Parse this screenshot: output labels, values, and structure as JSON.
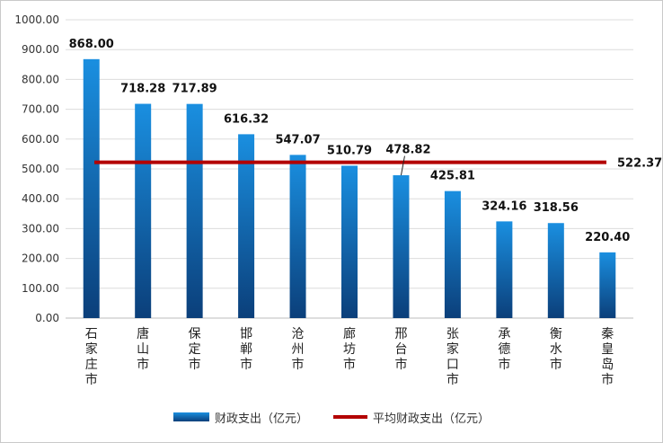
{
  "chart_data": {
    "type": "bar",
    "categories": [
      "石家庄市",
      "唐山市",
      "保定市",
      "邯郸市",
      "沧州市",
      "廊坊市",
      "邢台市",
      "张家口市",
      "承德市",
      "衡水市",
      "秦皇岛市"
    ],
    "series": [
      {
        "name": "财政支出（亿元）",
        "type": "bar",
        "values": [
          868.0,
          718.28,
          717.89,
          616.32,
          547.07,
          510.79,
          478.82,
          425.81,
          324.16,
          318.56,
          220.4
        ],
        "labels": [
          "868.00",
          "718.28",
          "717.89",
          "616.32",
          "547.07",
          "510.79",
          "478.82",
          "425.81",
          "324.16",
          "318.56",
          "220.40"
        ],
        "color_top": "#1a8fe0",
        "color_bottom": "#0b3f7a"
      },
      {
        "name": "平均财政支出（亿元）",
        "type": "line",
        "value": 522.37,
        "label": "522.37",
        "color": "#b30000"
      }
    ],
    "y_ticks": [
      "0.00",
      "100.00",
      "200.00",
      "300.00",
      "400.00",
      "500.00",
      "600.00",
      "700.00",
      "800.00",
      "900.00",
      "1000.00"
    ],
    "ylim": [
      0,
      1000
    ],
    "grid": true,
    "legend_position": "bottom"
  }
}
